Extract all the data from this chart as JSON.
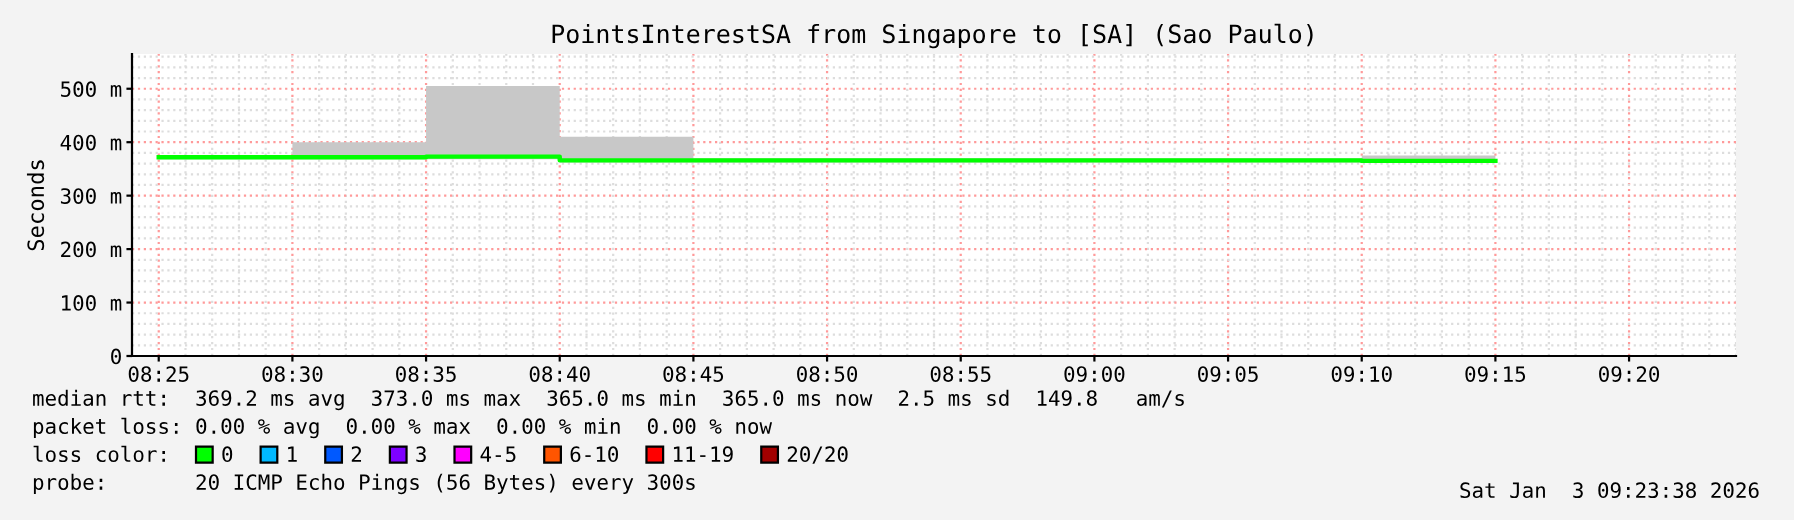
{
  "chart_data": {
    "type": "step",
    "title": "PointsInterestSA from Singapore to [SA] (Sao Paulo)",
    "ylabel": "Seconds",
    "x": [
      "2026-01-03T08:25",
      "2026-01-03T08:30",
      "2026-01-03T08:35",
      "2026-01-03T08:40",
      "2026-01-03T08:45",
      "2026-01-03T08:50",
      "2026-01-03T08:55",
      "2026-01-03T09:00",
      "2026-01-03T09:05",
      "2026-01-03T09:10",
      "2026-01-03T09:15"
    ],
    "series": [
      {
        "name": "0",
        "color": "#00ff00",
        "values": [
          372,
          372,
          373,
          366,
          366,
          366,
          366,
          366,
          366,
          365,
          365
        ],
        "lower": [
          368,
          368,
          368,
          362,
          362,
          362,
          362,
          362,
          362,
          362,
          362
        ],
        "upper": [
          376,
          400,
          505,
          410,
          370,
          370,
          370,
          370,
          370,
          375,
          375
        ]
      },
      {
        "name": "1",
        "color": "#00b8ff",
        "values": [
          null,
          null,
          null,
          null,
          null,
          null,
          null,
          null,
          null,
          null,
          null
        ]
      },
      {
        "name": "2",
        "color": "#0059ff",
        "values": [
          null,
          null,
          null,
          null,
          null,
          null,
          null,
          null,
          null,
          null,
          null
        ]
      },
      {
        "name": "3",
        "color": "#7e00ff",
        "values": [
          null,
          null,
          null,
          null,
          null,
          null,
          null,
          null,
          null,
          null,
          null
        ]
      },
      {
        "name": "4-5",
        "color": "#ff00ff",
        "values": [
          null,
          null,
          null,
          null,
          null,
          null,
          null,
          null,
          null,
          null,
          null
        ]
      },
      {
        "name": "6-10",
        "color": "#ff5500",
        "values": [
          null,
          null,
          null,
          null,
          null,
          null,
          null,
          null,
          null,
          null,
          null
        ]
      },
      {
        "name": "11-19",
        "color": "#ff0000",
        "values": [
          null,
          null,
          null,
          null,
          null,
          null,
          null,
          null,
          null,
          null,
          null
        ]
      },
      {
        "name": "20/20",
        "color": "#a10000",
        "values": [
          null,
          null,
          null,
          null,
          null,
          null,
          null,
          null,
          null,
          null,
          null
        ]
      }
    ],
    "legend_title": "loss color:",
    "legend": "bottom",
    "xlim": [
      "2026-01-03T08:24",
      "2026-01-03T09:24"
    ],
    "xticks": [
      {
        "value": "2026-01-03T08:25",
        "label": "08:25"
      },
      {
        "value": "2026-01-03T08:30",
        "label": "08:30"
      },
      {
        "value": "2026-01-03T08:35",
        "label": "08:35"
      },
      {
        "value": "2026-01-03T08:40",
        "label": "08:40"
      },
      {
        "value": "2026-01-03T08:45",
        "label": "08:45"
      },
      {
        "value": "2026-01-03T08:50",
        "label": "08:50"
      },
      {
        "value": "2026-01-03T08:55",
        "label": "08:55"
      },
      {
        "value": "2026-01-03T09:00",
        "label": "09:00"
      },
      {
        "value": "2026-01-03T09:05",
        "label": "09:05"
      },
      {
        "value": "2026-01-03T09:10",
        "label": "09:10"
      },
      {
        "value": "2026-01-03T09:15",
        "label": "09:15"
      },
      {
        "value": "2026-01-03T09:20",
        "label": "09:20"
      }
    ],
    "ylim": [
      0,
      565
    ],
    "yticks": [
      0,
      {
        "value": 100,
        "label": "100 m"
      },
      {
        "value": 200,
        "label": "200 m"
      },
      {
        "value": 300,
        "label": "300 m"
      },
      {
        "value": 400,
        "label": "400 m"
      },
      {
        "value": 500,
        "label": "500 m"
      }
    ],
    "grid": true,
    "annotations": [
      "median rtt:  369.2 ms avg  373.0 ms max  365.0 ms min  365.0 ms now  2.5 ms sd  149.8   am/s",
      "packet loss: 0.00 % avg  0.00 % max  0.00 % min  0.00 % now",
      "probe:       20 ICMP Echo Pings (56 Bytes) every 300s",
      "Sat Jan  3 09:23:38 2026"
    ]
  }
}
